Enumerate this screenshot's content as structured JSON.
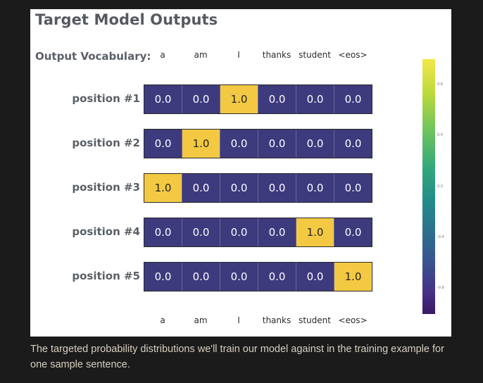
{
  "title": "Target Model Outputs",
  "vocab_label": "Output Vocabulary:",
  "vocabulary": [
    "a",
    "am",
    "I",
    "thanks",
    "student",
    "<eos>"
  ],
  "rows": [
    {
      "label": "position #1",
      "values": [
        "0.0",
        "0.0",
        "1.0",
        "0.0",
        "0.0",
        "0.0"
      ]
    },
    {
      "label": "position #2",
      "values": [
        "0.0",
        "1.0",
        "0.0",
        "0.0",
        "0.0",
        "0.0"
      ]
    },
    {
      "label": "position #3",
      "values": [
        "1.0",
        "0.0",
        "0.0",
        "0.0",
        "0.0",
        "0.0"
      ]
    },
    {
      "label": "position #4",
      "values": [
        "0.0",
        "0.0",
        "0.0",
        "0.0",
        "1.0",
        "0.0"
      ]
    },
    {
      "label": "position #5",
      "values": [
        "0.0",
        "0.0",
        "0.0",
        "0.0",
        "0.0",
        "1.0"
      ]
    }
  ],
  "colors": {
    "zero": "#3d3a7e",
    "one": "#f3c943"
  },
  "colorbar_ticks": [
    "0.8",
    "0.4",
    "0.0",
    "-0.4",
    "-0.8"
  ],
  "caption": "The targeted probability distributions we'll train our model against in the training example for one sample sentence."
}
